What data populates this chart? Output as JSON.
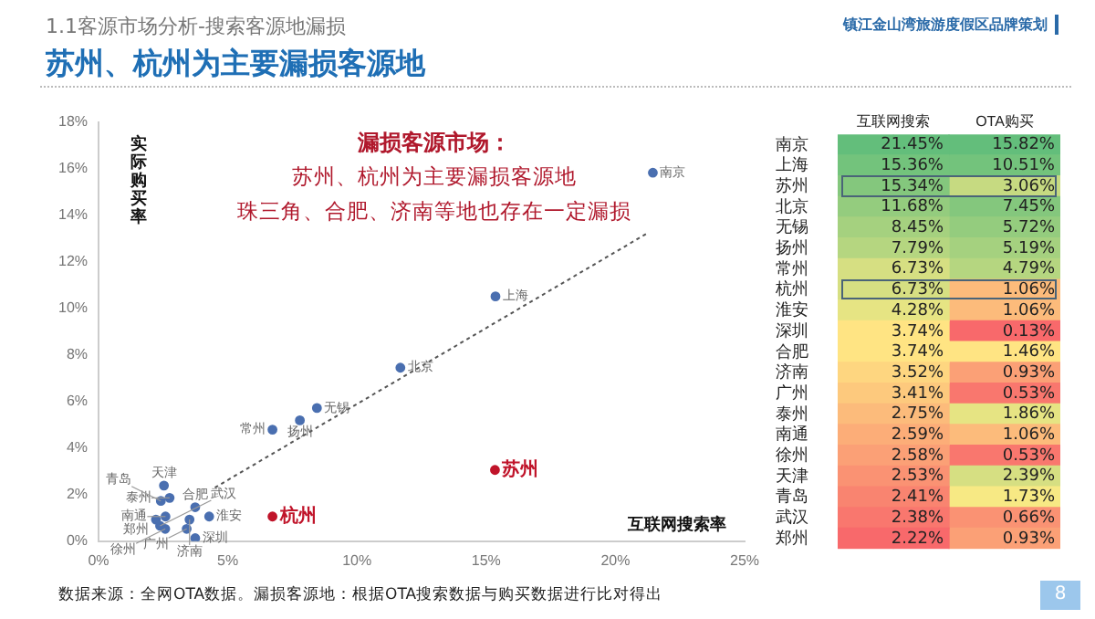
{
  "chart_data": [
    {
      "type": "scatter",
      "title": "苏州、杭州为主要漏损客源地",
      "subtitle": "1.1客源市场分析-搜索客源地漏损",
      "xlabel": "互联网搜索率",
      "ylabel": "实际购买率",
      "xlim": [
        0,
        25
      ],
      "xticks": [
        {
          "value": 0,
          "label": "0%"
        },
        {
          "value": 5,
          "label": "5%"
        },
        {
          "value": 10,
          "label": "10%"
        },
        {
          "value": 15,
          "label": "15%"
        },
        {
          "value": 20,
          "label": "20%"
        },
        {
          "value": 25,
          "label": "25%"
        }
      ],
      "ylim": [
        0,
        18
      ],
      "yticks": [
        {
          "value": 0,
          "label": "0%"
        },
        {
          "value": 2,
          "label": "2%"
        },
        {
          "value": 4,
          "label": "4%"
        },
        {
          "value": 6,
          "label": "6%"
        },
        {
          "value": 8,
          "label": "8%"
        },
        {
          "value": 10,
          "label": "10%"
        },
        {
          "value": 12,
          "label": "12%"
        },
        {
          "value": 14,
          "label": "14%"
        },
        {
          "value": 16,
          "label": "16%"
        },
        {
          "value": 18,
          "label": "18%"
        }
      ],
      "grid": false,
      "legend": false,
      "series": [
        {
          "type": "scatter",
          "color": "#4a6fb0",
          "marker": "circle",
          "x": [
            21.45,
            15.36,
            15.34,
            11.68,
            8.45,
            7.79,
            6.73,
            6.73,
            4.28,
            3.74,
            3.74,
            3.52,
            3.41,
            2.75,
            2.59,
            2.58,
            2.53,
            2.41,
            2.38,
            2.22
          ],
          "values": [
            15.82,
            10.51,
            3.06,
            7.45,
            5.72,
            5.19,
            4.79,
            1.06,
            1.06,
            0.13,
            1.46,
            0.93,
            0.53,
            1.86,
            1.06,
            0.53,
            2.39,
            1.73,
            0.66,
            0.93
          ],
          "colors": [
            "#4a6fb0",
            "#4a6fb0",
            "#c0142a",
            "#4a6fb0",
            "#4a6fb0",
            "#4a6fb0",
            "#4a6fb0",
            "#c0142a",
            "#4a6fb0",
            "#4a6fb0",
            "#4a6fb0",
            "#4a6fb0",
            "#4a6fb0",
            "#4a6fb0",
            "#4a6fb0",
            "#4a6fb0",
            "#4a6fb0",
            "#4a6fb0",
            "#4a6fb0",
            "#4a6fb0"
          ]
        },
        {
          "type": "line",
          "color": "#555555",
          "line_style": "dotted",
          "x": [
            4.5,
            21.2
          ],
          "values": [
            2.3,
            13.2
          ]
        }
      ],
      "annotations": [
        "漏损客源市场：",
        "苏州、杭州为主要漏损客源地",
        "珠三角、合肥、济南等地也存在一定漏损",
        "数据来源：全网OTA数据。漏损客源地：根据OTA搜索数据与购买数据进行比对得出",
        {
          "text": "南京",
          "x": 21.45,
          "y": 15.82
        },
        {
          "text": "上海",
          "x": 15.36,
          "y": 10.51
        },
        {
          "text": "苏州",
          "x": 15.34,
          "y": 3.06
        },
        {
          "text": "北京",
          "x": 11.68,
          "y": 7.45
        },
        {
          "text": "无锡",
          "x": 8.45,
          "y": 5.72
        },
        {
          "text": "扬州",
          "x": 7.79,
          "y": 5.19
        },
        {
          "text": "常州",
          "x": 6.73,
          "y": 4.79
        },
        {
          "text": "杭州",
          "x": 6.73,
          "y": 1.06
        },
        {
          "text": "淮安",
          "x": 4.28,
          "y": 1.06
        },
        {
          "text": "深圳",
          "x": 3.74,
          "y": 0.13
        },
        {
          "text": "合肥",
          "x": 3.74,
          "y": 1.46
        },
        {
          "text": "济南",
          "x": 3.52,
          "y": 0.93
        },
        {
          "text": "广州",
          "x": 3.41,
          "y": 0.53
        },
        {
          "text": "泰州",
          "x": 2.75,
          "y": 1.86
        },
        {
          "text": "南通",
          "x": 2.59,
          "y": 1.06
        },
        {
          "text": "徐州",
          "x": 2.58,
          "y": 0.53
        },
        {
          "text": "天津",
          "x": 2.53,
          "y": 2.39
        },
        {
          "text": "青岛",
          "x": 2.41,
          "y": 1.73
        },
        {
          "text": "武汉",
          "x": 2.38,
          "y": 0.66
        },
        {
          "text": "郑州",
          "x": 2.22,
          "y": 0.93
        }
      ]
    },
    {
      "type": "heatmap",
      "title": "镇江金山湾旅游度假区品牌策划",
      "categories": [
        "互联网搜索",
        "OTA购买"
      ],
      "y_categories": [
        "南京",
        "上海",
        "苏州",
        "北京",
        "无锡",
        "扬州",
        "常州",
        "杭州",
        "淮安",
        "深圳",
        "合肥",
        "济南",
        "广州",
        "泰州",
        "南通",
        "徐州",
        "天津",
        "青岛",
        "武汉",
        "郑州"
      ],
      "cells": [
        [
          21.45,
          15.82
        ],
        [
          15.36,
          10.51
        ],
        [
          15.34,
          3.06
        ],
        [
          11.68,
          7.45
        ],
        [
          8.45,
          5.72
        ],
        [
          7.79,
          5.19
        ],
        [
          6.73,
          4.79
        ],
        [
          6.73,
          1.06
        ],
        [
          4.28,
          1.06
        ],
        [
          3.74,
          0.13
        ],
        [
          3.74,
          1.46
        ],
        [
          3.52,
          0.93
        ],
        [
          3.41,
          0.53
        ],
        [
          2.75,
          1.86
        ],
        [
          2.59,
          1.06
        ],
        [
          2.58,
          0.53
        ],
        [
          2.53,
          2.39
        ],
        [
          2.41,
          1.73
        ],
        [
          2.38,
          0.66
        ],
        [
          2.22,
          0.93
        ]
      ],
      "cell_labels": [
        [
          "21.45%",
          "15.82%"
        ],
        [
          "15.36%",
          "10.51%"
        ],
        [
          "15.34%",
          "3.06%"
        ],
        [
          "11.68%",
          "7.45%"
        ],
        [
          "8.45%",
          "5.72%"
        ],
        [
          "7.79%",
          "5.19%"
        ],
        [
          "6.73%",
          "4.79%"
        ],
        [
          "6.73%",
          "1.06%"
        ],
        [
          "4.28%",
          "1.06%"
        ],
        [
          "3.74%",
          "0.13%"
        ],
        [
          "3.74%",
          "1.46%"
        ],
        [
          "3.52%",
          "0.93%"
        ],
        [
          "3.41%",
          "0.53%"
        ],
        [
          "2.75%",
          "1.86%"
        ],
        [
          "2.59%",
          "1.06%"
        ],
        [
          "2.58%",
          "0.53%"
        ],
        [
          "2.53%",
          "2.39%"
        ],
        [
          "2.41%",
          "1.73%"
        ],
        [
          "2.38%",
          "0.66%"
        ],
        [
          "2.22%",
          "0.93%"
        ]
      ],
      "annotations": [
        "8"
      ]
    }
  ]
}
